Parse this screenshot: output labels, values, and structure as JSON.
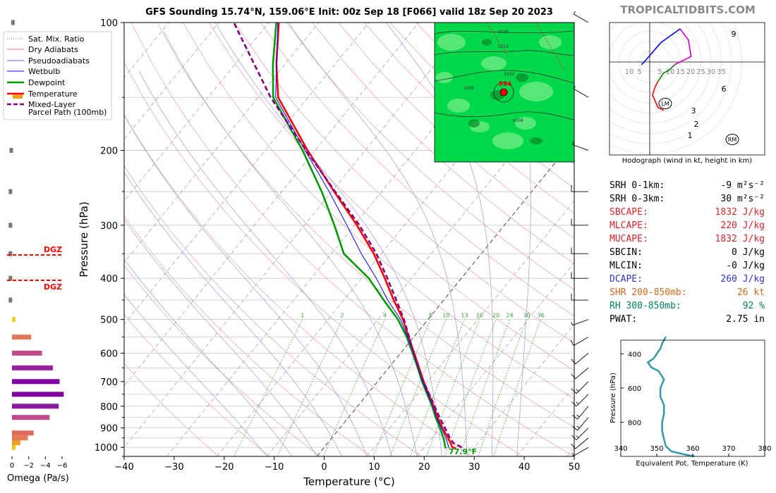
{
  "title": "GFS Sounding 15.74°N, 159.06°E Init: 00z Sep 18 [F066] valid 18z Sep 20 2023",
  "brand": "TROPICALTIDBITS.COM",
  "chart_data": [
    {
      "type": "line",
      "name": "Skew-T log-P diagram",
      "xlabel": "Temperature (°C)",
      "ylabel": "Pressure (hPa)",
      "xlim": [
        -40,
        50
      ],
      "ylim": [
        1050,
        100
      ],
      "y_scale": "log",
      "x_ticks": [
        -40,
        -30,
        -20,
        -10,
        0,
        10,
        20,
        30,
        40,
        50
      ],
      "y_ticks": [
        100,
        200,
        300,
        400,
        500,
        600,
        700,
        800,
        900,
        1000
      ],
      "grid": true,
      "legend": {
        "position": "left",
        "entries": [
          "Sat. Mix. Ratio",
          "Dry Adiabats",
          "Pseudoadiabats",
          "Wetbulb",
          "Dewpoint",
          "Temperature",
          "Mixed-Layer\nParcel Path (100mb)"
        ],
        "colors": [
          "#2ca02c",
          "#d9534f",
          "#3333cc",
          "#0000ff",
          "#009900",
          "#ff0000",
          "#800080"
        ]
      },
      "mixing_ratio_labels": [
        "1",
        "2",
        "4",
        "8",
        "10",
        "13",
        "16",
        "20",
        "24",
        "30",
        "36"
      ],
      "surface_label": "77.9°F",
      "series": [
        {
          "name": "Temperature",
          "color": "#ff0000",
          "points": [
            [
              1005,
              26.5
            ],
            [
              1000,
              25.6
            ],
            [
              975,
              24.5
            ],
            [
              950,
              23.2
            ],
            [
              900,
              20.5
            ],
            [
              850,
              17.8
            ],
            [
              800,
              15.2
            ],
            [
              750,
              12.3
            ],
            [
              700,
              9.2
            ],
            [
              650,
              6.1
            ],
            [
              600,
              2.7
            ],
            [
              550,
              -1.0
            ],
            [
              500,
              -5.0
            ],
            [
              450,
              -10.0
            ],
            [
              400,
              -15.3
            ],
            [
              350,
              -21.5
            ],
            [
              300,
              -29.5
            ],
            [
              250,
              -39.5
            ],
            [
              200,
              -51.5
            ],
            [
              150,
              -66.0
            ],
            [
              125,
              -71.8
            ],
            [
              100,
              -78.0
            ]
          ]
        },
        {
          "name": "Dewpoint",
          "color": "#009900",
          "points": [
            [
              1005,
              24.5
            ],
            [
              1000,
              24.2
            ],
            [
              975,
              23.3
            ],
            [
              950,
              22.3
            ],
            [
              900,
              20.0
            ],
            [
              850,
              17.4
            ],
            [
              800,
              14.9
            ],
            [
              750,
              12.0
            ],
            [
              700,
              8.9
            ],
            [
              650,
              5.8
            ],
            [
              600,
              2.4
            ],
            [
              550,
              -1.4
            ],
            [
              500,
              -6.0
            ],
            [
              450,
              -12.0
            ],
            [
              400,
              -18.5
            ],
            [
              350,
              -27.5
            ],
            [
              300,
              -34.0
            ],
            [
              250,
              -42.0
            ],
            [
              200,
              -52.5
            ],
            [
              150,
              -67.0
            ],
            [
              125,
              -72.5
            ],
            [
              100,
              -78.5
            ]
          ]
        },
        {
          "name": "Wetbulb",
          "color": "#0000ff",
          "points": [
            [
              1005,
              25.2
            ],
            [
              1000,
              24.9
            ],
            [
              950,
              22.8
            ],
            [
              900,
              20.3
            ],
            [
              850,
              17.6
            ],
            [
              800,
              15.0
            ],
            [
              750,
              12.1
            ],
            [
              700,
              9.0
            ],
            [
              650,
              5.9
            ],
            [
              600,
              2.5
            ],
            [
              550,
              -1.2
            ],
            [
              500,
              -5.5
            ],
            [
              450,
              -11.2
            ],
            [
              400,
              -17.0
            ],
            [
              350,
              -24.0
            ],
            [
              300,
              -31.5
            ],
            [
              250,
              -40.5
            ],
            [
              200,
              -52.0
            ],
            [
              150,
              -66.5
            ],
            [
              100,
              -78.2
            ]
          ]
        },
        {
          "name": "Mixed-Layer Parcel Path (100mb)",
          "color": "#800080",
          "dashed": true,
          "points": [
            [
              1000,
              27.5
            ],
            [
              975,
              25.0
            ],
            [
              950,
              23.6
            ],
            [
              900,
              21.0
            ],
            [
              850,
              18.2
            ],
            [
              800,
              15.4
            ],
            [
              750,
              12.4
            ],
            [
              700,
              9.2
            ],
            [
              650,
              6.0
            ],
            [
              600,
              2.6
            ],
            [
              550,
              -0.9
            ],
            [
              500,
              -4.8
            ],
            [
              450,
              -9.5
            ],
            [
              400,
              -14.8
            ],
            [
              350,
              -21.0
            ],
            [
              300,
              -29.0
            ],
            [
              250,
              -39.3
            ],
            [
              200,
              -51.8
            ],
            [
              150,
              -67.5
            ],
            [
              100,
              -87.0
            ]
          ]
        }
      ],
      "dgz_labels": [
        "DGZ",
        "DGZ"
      ],
      "wind_barbs": [
        {
          "p": 1000,
          "dir": 240,
          "kt": 5
        },
        {
          "p": 950,
          "dir": 230,
          "kt": 10
        },
        {
          "p": 900,
          "dir": 225,
          "kt": 15
        },
        {
          "p": 850,
          "dir": 220,
          "kt": 15
        },
        {
          "p": 800,
          "dir": 220,
          "kt": 15
        },
        {
          "p": 750,
          "dir": 225,
          "kt": 15
        },
        {
          "p": 700,
          "dir": 225,
          "kt": 15
        },
        {
          "p": 650,
          "dir": 230,
          "kt": 10
        },
        {
          "p": 600,
          "dir": 230,
          "kt": 10
        },
        {
          "p": 550,
          "dir": 240,
          "kt": 10
        },
        {
          "p": 500,
          "dir": 250,
          "kt": 5
        },
        {
          "p": 450,
          "dir": 270,
          "kt": 10
        },
        {
          "p": 400,
          "dir": 270,
          "kt": 15
        },
        {
          "p": 350,
          "dir": 270,
          "kt": 15
        },
        {
          "p": 300,
          "dir": 270,
          "kt": 15
        },
        {
          "p": 250,
          "dir": 270,
          "kt": 20
        },
        {
          "p": 200,
          "dir": 290,
          "kt": 5
        },
        {
          "p": 150,
          "dir": 300,
          "kt": 5
        },
        {
          "p": 100,
          "dir": 300,
          "kt": 5
        }
      ]
    },
    {
      "type": "bar",
      "name": "Omega profile",
      "xlabel": "Omega (Pa/s)",
      "x_ticks": [
        "0",
        "−2",
        "−4",
        "−6"
      ],
      "xlim": [
        0,
        -6.5
      ],
      "bars": [
        {
          "p": 1000,
          "omega": -0.4,
          "color": "#f0c419"
        },
        {
          "p": 975,
          "omega": -1.0,
          "color": "#f0a020"
        },
        {
          "p": 950,
          "omega": -1.9,
          "color": "#e8785a"
        },
        {
          "p": 925,
          "omega": -2.6,
          "color": "#e06a5a"
        },
        {
          "p": 850,
          "omega": -4.5,
          "color": "#c04a8a"
        },
        {
          "p": 800,
          "omega": -5.6,
          "color": "#8a1aa0"
        },
        {
          "p": 750,
          "omega": -6.2,
          "color": "#8000a0"
        },
        {
          "p": 700,
          "omega": -5.7,
          "color": "#8000a0"
        },
        {
          "p": 650,
          "omega": -4.9,
          "color": "#9a20a0"
        },
        {
          "p": 600,
          "omega": -3.6,
          "color": "#c04a8a"
        },
        {
          "p": 550,
          "omega": -2.3,
          "color": "#e07a5a"
        },
        {
          "p": 500,
          "omega": -0.4,
          "color": "#f0d020"
        },
        {
          "p": 450,
          "omega": 0.4,
          "color": "#777777"
        },
        {
          "p": 400,
          "omega": 0.4,
          "color": "#777777"
        },
        {
          "p": 350,
          "omega": 0.4,
          "color": "#777777"
        },
        {
          "p": 300,
          "omega": 0.4,
          "color": "#777777"
        },
        {
          "p": 250,
          "omega": 0.4,
          "color": "#777777"
        },
        {
          "p": 200,
          "omega": 0.3,
          "color": "#777777"
        },
        {
          "p": 100,
          "omega": 0.1,
          "color": "#777777"
        }
      ]
    },
    {
      "type": "line",
      "name": "Hodograph",
      "caption": "Hodograph (wind in kt, height in km)",
      "ring_labels": [
        "10",
        "5",
        "5",
        "10",
        "15",
        "20",
        "25",
        "30",
        "35"
      ],
      "height_labels": [
        "1",
        "2",
        "3",
        "6",
        "9"
      ],
      "markers": [
        "LM",
        "RM"
      ],
      "segments": [
        {
          "color": "#ff0000",
          "points": [
            [
              5,
              -17.5
            ],
            [
              3,
              -16.5
            ],
            [
              1,
              -12
            ],
            [
              2,
              -9
            ],
            [
              3,
              -7
            ]
          ]
        },
        {
          "color": "#008000",
          "points": [
            [
              3,
              -7
            ],
            [
              5,
              -4
            ],
            [
              7,
              -3
            ],
            [
              9,
              -1
            ]
          ]
        },
        {
          "color": "#cc00cc",
          "points": [
            [
              9,
              -1
            ],
            [
              15,
              2
            ],
            [
              14,
              8
            ],
            [
              11,
              12
            ]
          ]
        },
        {
          "color": "#0000ff",
          "points": [
            [
              11,
              12
            ],
            [
              4,
              7
            ],
            [
              -2,
              0
            ],
            [
              -3,
              -1
            ]
          ]
        }
      ]
    },
    {
      "type": "line",
      "name": "Theta-e profile",
      "xlabel": "Equivalent Pot. Temperature (K)",
      "ylabel": "Pressure (hPa)",
      "xlim": [
        340,
        380
      ],
      "ylim": [
        1000,
        300
      ],
      "x_ticks": [
        340,
        350,
        360,
        370,
        380
      ],
      "y_ticks": [
        400,
        600,
        800
      ],
      "color": "#3399aa",
      "points": [
        [
          1000,
          360.5
        ],
        [
          990,
          358
        ],
        [
          970,
          354
        ],
        [
          940,
          352.5
        ],
        [
          900,
          352
        ],
        [
          850,
          351.5
        ],
        [
          800,
          351.5
        ],
        [
          750,
          352
        ],
        [
          700,
          352
        ],
        [
          650,
          351
        ],
        [
          600,
          351
        ],
        [
          550,
          352
        ],
        [
          500,
          350.5
        ],
        [
          480,
          348.5
        ],
        [
          450,
          347.5
        ],
        [
          430,
          349
        ],
        [
          400,
          350
        ],
        [
          370,
          351
        ],
        [
          340,
          351.5
        ],
        [
          300,
          352.5
        ]
      ]
    }
  ],
  "stats": [
    {
      "label": "SRH 0-1km:",
      "value": "-9 m²s⁻²",
      "color": "#000000"
    },
    {
      "label": "SRH 0-3km:",
      "value": "30 m²s⁻²",
      "color": "#000000"
    },
    {
      "label": "SBCAPE:",
      "value": "1832 J/kg",
      "color": "#d62728"
    },
    {
      "label": "MLCAPE:",
      "value": "220 J/kg",
      "color": "#d62728"
    },
    {
      "label": "MUCAPE:",
      "value": "1832 J/kg",
      "color": "#d62728"
    },
    {
      "label": "SBCIN:",
      "value": "0 J/kg",
      "color": "#000000"
    },
    {
      "label": "MLCIN:",
      "value": "-0 J/kg",
      "color": "#000000"
    },
    {
      "label": "DCAPE:",
      "value": "260 J/kg",
      "color": "#3333cc"
    },
    {
      "label": "SHR 200-850mb:",
      "value": "26 kt",
      "color": "#d2691e"
    },
    {
      "label": "RH 300-850mb:",
      "value": "92 %",
      "color": "#008060"
    },
    {
      "label": "PWAT:",
      "value": "2.75 in",
      "color": "#000000"
    }
  ],
  "map_inset": {
    "pressure_labels": [
      "1016",
      "1014",
      "1010",
      "1008",
      "1008"
    ],
    "low_pressure_value": "994"
  }
}
